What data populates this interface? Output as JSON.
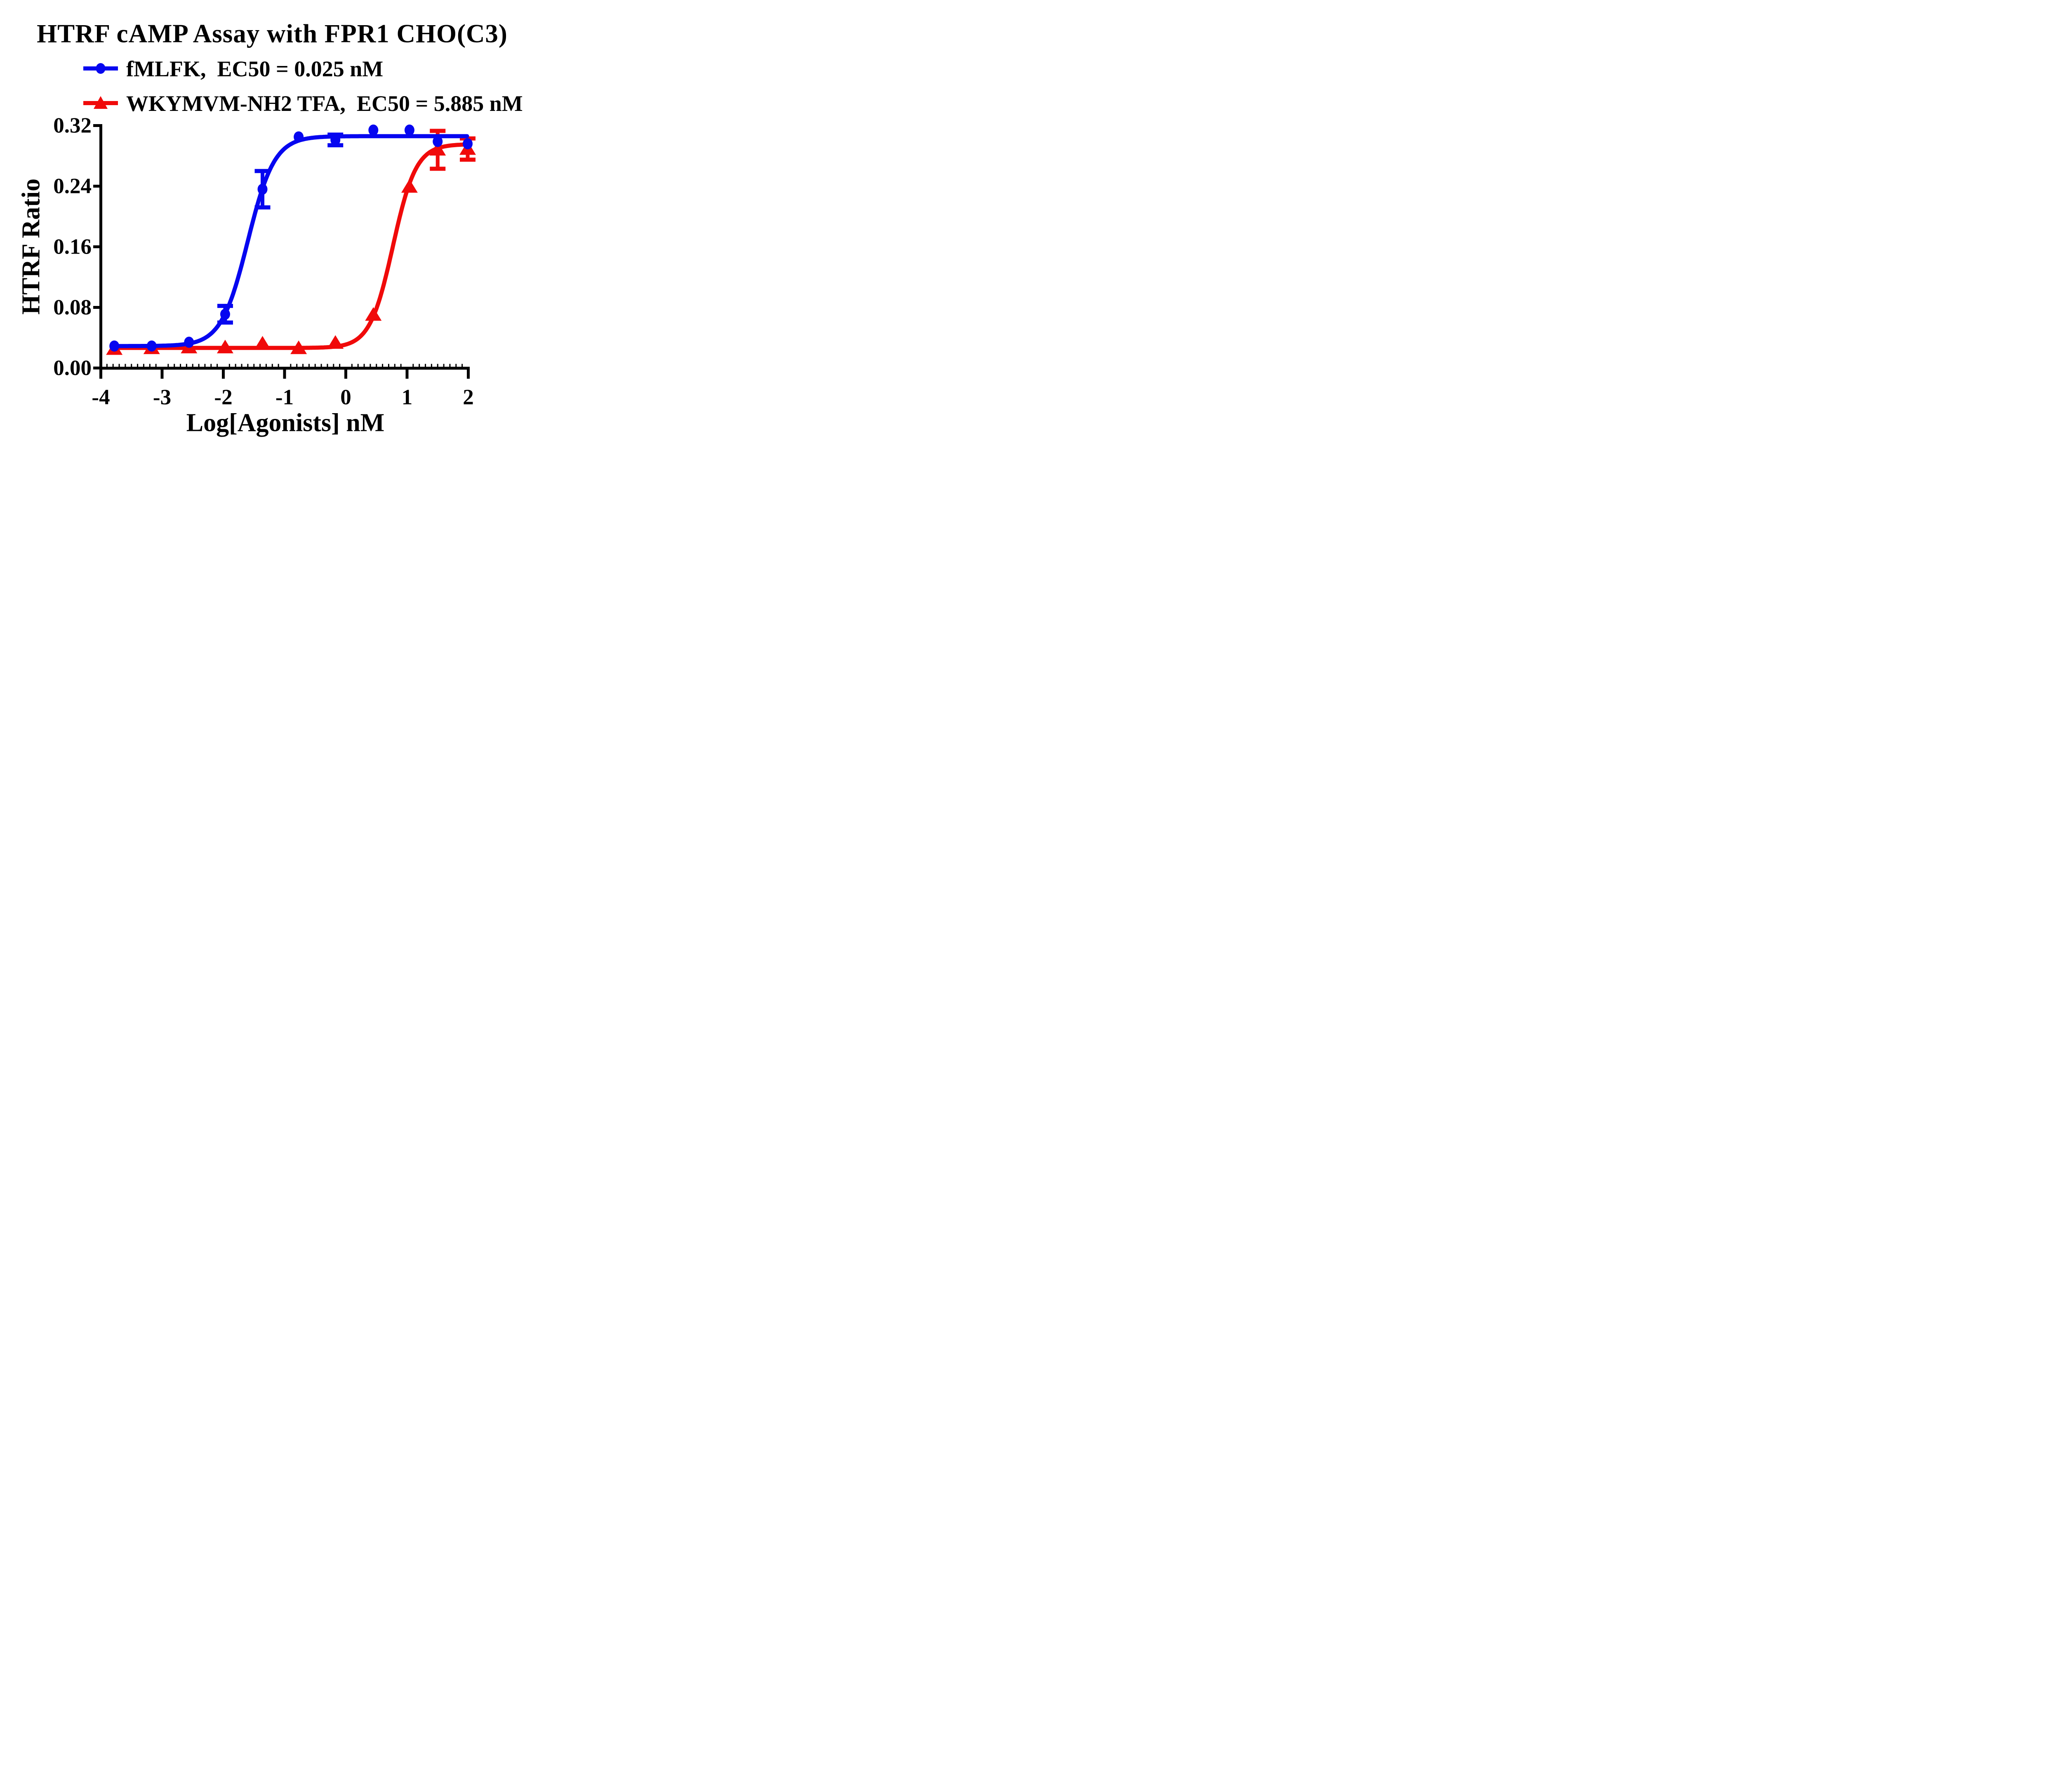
{
  "page": {
    "background": "#ffffff"
  },
  "chart_data": {
    "type": "scatter",
    "title": "HTRF cAMP Assay with FPR1 CHO(C3)",
    "xlabel": "Log[Agonists] nM",
    "ylabel": "HTRF Ratio",
    "xlim": [
      -4,
      2
    ],
    "ylim": [
      0.0,
      0.32
    ],
    "xticks": [
      -4,
      -3,
      -2,
      -1,
      0,
      1,
      2
    ],
    "xtick_labels": [
      "-4",
      "-3",
      "-2",
      "-1",
      "0",
      "1",
      "2"
    ],
    "ytick_values": [
      0.0,
      0.08,
      0.16,
      0.24,
      0.32
    ],
    "ytick_labels": [
      "0.00",
      "0.08",
      "0.16",
      "0.24",
      "0.32"
    ],
    "minor_tick_step_x": 0.1,
    "grid": false,
    "legend_position": "top-left",
    "axis_color": "#000000",
    "series": [
      {
        "name": "fMLFK",
        "label": "fMLFK,  EC50 = 0.025 nM",
        "ec50_nM": 0.025,
        "color": "#0606F0",
        "marker": "circle",
        "x": [
          -3.78,
          -3.17,
          -2.56,
          -1.97,
          -1.36,
          -0.77,
          -0.17,
          0.45,
          1.04,
          1.5,
          1.99
        ],
        "y": [
          0.029,
          0.029,
          0.034,
          0.071,
          0.236,
          0.305,
          0.301,
          0.314,
          0.314,
          0.299,
          0.296
        ],
        "yerr": [
          0,
          0,
          0,
          0.011,
          0.024,
          0,
          0.007,
          0,
          0,
          0,
          0
        ],
        "fit4pl": {
          "bottom": 0.029,
          "top": 0.306,
          "logEC50": -1.6,
          "hill": 2.0
        }
      },
      {
        "name": "WKYMVM-NH2 TFA",
        "label": "WKYMVM-NH2 TFA,  EC50 = 5.885 nM",
        "ec50_nM": 5.885,
        "color": "#F00A0A",
        "marker": "triangle",
        "x": [
          -3.78,
          -3.17,
          -2.56,
          -1.97,
          -1.36,
          -0.77,
          -0.17,
          0.45,
          1.04,
          1.5,
          1.99
        ],
        "y": [
          0.025,
          0.026,
          0.027,
          0.027,
          0.032,
          0.026,
          0.033,
          0.07,
          0.239,
          0.288,
          0.289
        ],
        "yerr": [
          0,
          0,
          0,
          0,
          0,
          0,
          0,
          0,
          0,
          0.025,
          0.014
        ],
        "fit4pl": {
          "bottom": 0.0265,
          "top": 0.2955,
          "logEC50": 0.77,
          "hill": 2.3
        }
      }
    ]
  }
}
